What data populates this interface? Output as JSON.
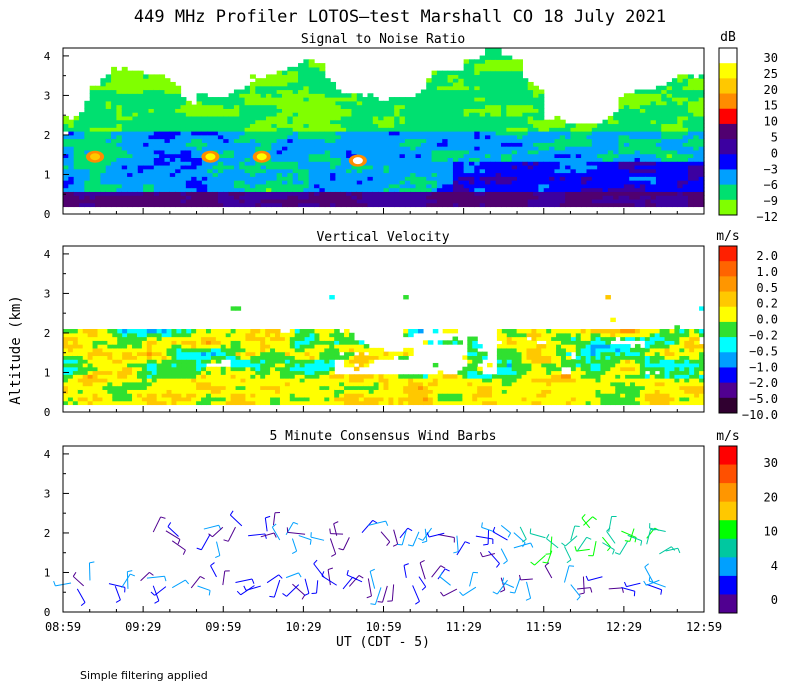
{
  "title": "449 MHz Profiler LOTOS–test Marshall CO 18 July 2021",
  "ylabel": "Altitude (km)",
  "xlabel": "UT  (CDT - 5)",
  "footnote": "Simple filtering applied",
  "x_ticks": [
    "08:59",
    "09:29",
    "09:59",
    "10:29",
    "10:59",
    "11:29",
    "11:59",
    "12:29",
    "12:59"
  ],
  "colors": {
    "missing": "#ffffff"
  },
  "chart_data": [
    {
      "id": "snr",
      "type": "heatmap",
      "title": "Signal to Noise Ratio",
      "units": "dB",
      "ylim": [
        0,
        4.2
      ],
      "yticks": [
        "0",
        "1",
        "2",
        "3",
        "4"
      ],
      "colorbar": {
        "labels": [
          "30",
          "25",
          "20",
          "15",
          "10",
          "5",
          "0",
          "−3",
          "−6",
          "−9",
          "−12"
        ],
        "colors": [
          "#ffffff",
          "#ffff00",
          "#ffc800",
          "#ff8c00",
          "#ff0000",
          "#500070",
          "#3c00a0",
          "#0000ff",
          "#00a0ff",
          "#00e070",
          "#80ff00"
        ]
      }
    },
    {
      "id": "vv",
      "type": "heatmap",
      "title": "Vertical Velocity",
      "units": "m/s",
      "ylim": [
        0,
        4.2
      ],
      "yticks": [
        "0",
        "1",
        "2",
        "3",
        "4"
      ],
      "colorbar": {
        "labels": [
          "2.0",
          "1.0",
          "0.5",
          "0.2",
          "0.0",
          "−0.2",
          "−0.5",
          "−1.0",
          "−2.0",
          "−5.0",
          "−10.0"
        ],
        "colors": [
          "#ff2000",
          "#ff6400",
          "#ff9600",
          "#ffc800",
          "#ffff00",
          "#30e030",
          "#00ffff",
          "#00a0ff",
          "#0000ff",
          "#500090",
          "#300030"
        ]
      }
    },
    {
      "id": "wind",
      "type": "scatter",
      "title": "5 Minute Consensus Wind Barbs",
      "units": "m/s",
      "ylim": [
        0,
        4.2
      ],
      "yticks": [
        "0",
        "1",
        "2",
        "3",
        "4"
      ],
      "colorbar": {
        "labels": [
          "30",
          "20",
          "10",
          "4",
          "0"
        ],
        "colors": [
          "#ff0000",
          "#ff5000",
          "#ff9600",
          "#ffc800",
          "#00ff00",
          "#00c8a0",
          "#00a0ff",
          "#0000ff",
          "#500090"
        ]
      }
    }
  ]
}
